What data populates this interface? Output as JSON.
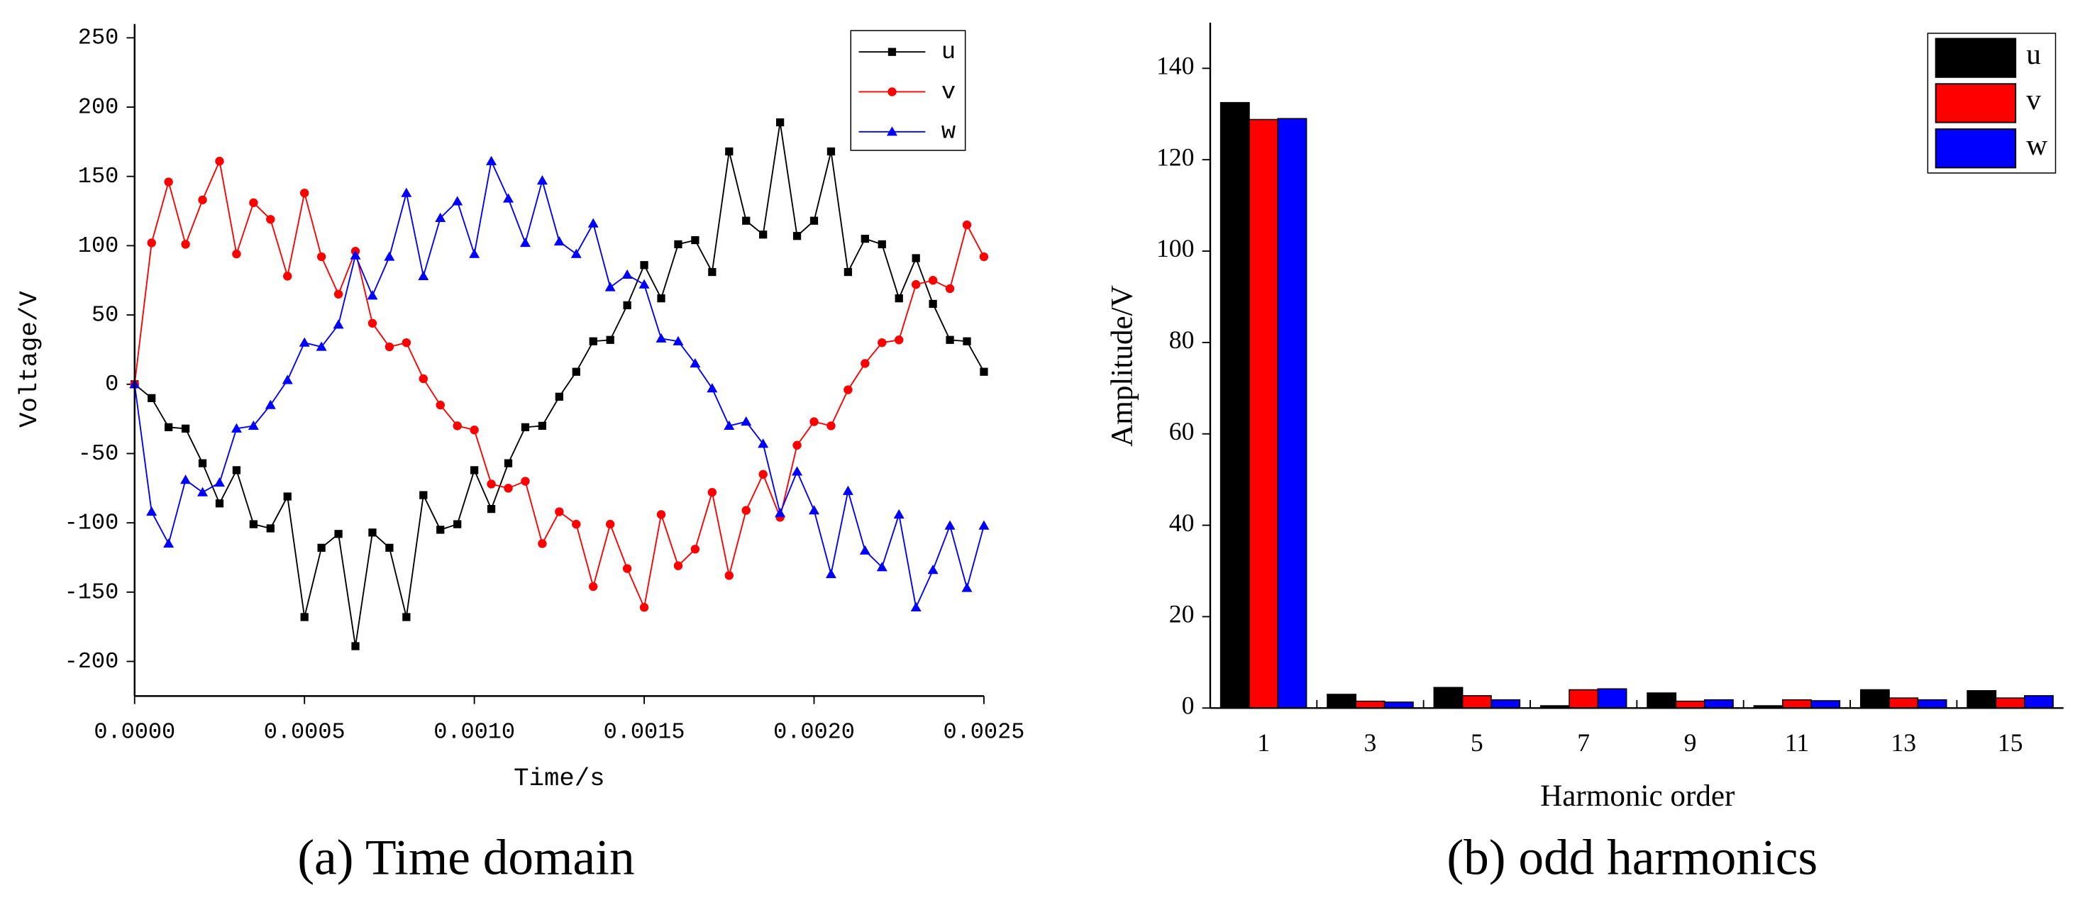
{
  "chart_data": [
    {
      "type": "line",
      "caption": "(a)  Time domain",
      "xlabel": "Time/s",
      "ylabel": "Voltage/V",
      "x": [
        0,
        5e-05,
        0.0001,
        0.00015,
        0.0002,
        0.00025,
        0.0003,
        0.00035,
        0.0004,
        0.00045,
        0.0005,
        0.00055,
        0.0006,
        0.00065,
        0.0007,
        0.00075,
        0.0008,
        0.00085,
        0.0009,
        0.00095,
        0.001,
        0.00105,
        0.0011,
        0.00115,
        0.0012,
        0.00125,
        0.0013,
        0.00135,
        0.0014,
        0.00145,
        0.0015,
        0.00155,
        0.0016,
        0.00165,
        0.0017,
        0.00175,
        0.0018,
        0.00185,
        0.0019,
        0.00195,
        0.002,
        0.00205,
        0.0021,
        0.00215,
        0.0022,
        0.00225,
        0.0023,
        0.00235,
        0.0024,
        0.00245,
        0.0025
      ],
      "series": [
        {
          "name": "u",
          "color": "#000000",
          "marker": "square",
          "values": [
            0,
            -10,
            -31,
            -32,
            -57,
            -86,
            -62,
            -101,
            -104,
            -81,
            -168,
            -118,
            -108,
            -189,
            -107,
            -118,
            -168,
            -80,
            -105,
            -101,
            -62,
            -90,
            -57,
            -31,
            -30,
            -9,
            9,
            31,
            32,
            57,
            86,
            62,
            101,
            104,
            81,
            168,
            118,
            108,
            189,
            107,
            118,
            168,
            81,
            105,
            101,
            62,
            91,
            58,
            32,
            31,
            9
          ]
        },
        {
          "name": "v",
          "color": "#ff0000",
          "marker": "circle",
          "values": [
            0,
            102,
            146,
            101,
            133,
            161,
            94,
            131,
            119,
            78,
            138,
            92,
            65,
            96,
            44,
            27,
            30,
            4,
            -15,
            -30,
            -33,
            -72,
            -75,
            -70,
            -115,
            -92,
            -101,
            -146,
            -101,
            -133,
            -161,
            -94,
            -131,
            -119,
            -78,
            -138,
            -91,
            -65,
            -96,
            -44,
            -27,
            -30,
            -4,
            15,
            30,
            32,
            72,
            75,
            69,
            115,
            92
          ]
        },
        {
          "name": "w",
          "color": "#0000ff",
          "marker": "triangle",
          "values": [
            0,
            -92,
            -115,
            -69,
            -78,
            -71,
            -32,
            -30,
            -15,
            3,
            30,
            27,
            43,
            93,
            64,
            92,
            138,
            78,
            120,
            132,
            94,
            161,
            134,
            102,
            147,
            103,
            94,
            116,
            70,
            79,
            72,
            33,
            31,
            15,
            -3,
            -30,
            -27,
            -43,
            -93,
            -63,
            -91,
            -137,
            -77,
            -120,
            -132,
            -94,
            -161,
            -134,
            -102,
            -147,
            -102
          ]
        }
      ],
      "xlim": [
        0,
        0.0025
      ],
      "xticks": [
        {
          "value": 0,
          "label": "0.0000"
        },
        {
          "value": 0.0005,
          "label": "0.0005"
        },
        {
          "value": 0.001,
          "label": "0.0010"
        },
        {
          "value": 0.0015,
          "label": "0.0015"
        },
        {
          "value": 0.002,
          "label": "0.0020"
        },
        {
          "value": 0.0025,
          "label": "0.0025"
        }
      ],
      "ylim": [
        -225,
        260
      ],
      "yticks": [
        -200,
        -150,
        -100,
        -50,
        0,
        50,
        100,
        150,
        200,
        250
      ],
      "grid": false,
      "legend": "upper right"
    },
    {
      "type": "bar",
      "caption": "(b) odd harmonics",
      "xlabel": "Harmonic order",
      "ylabel": "Amplitude/V",
      "categories": [
        "1",
        "3",
        "5",
        "7",
        "9",
        "11",
        "13",
        "15"
      ],
      "series": [
        {
          "name": "u",
          "color": "#000000",
          "values": [
            132.5,
            3,
            4.5,
            0.5,
            3.3,
            0.5,
            4,
            3.8
          ]
        },
        {
          "name": "v",
          "color": "#ff0000",
          "values": [
            128.8,
            1.5,
            2.7,
            4,
            1.5,
            1.8,
            2.2,
            2.2
          ]
        },
        {
          "name": "w",
          "color": "#0000ff",
          "values": [
            129,
            1.3,
            1.8,
            4.2,
            1.8,
            1.6,
            1.8,
            2.7
          ]
        }
      ],
      "ylim": [
        0,
        150
      ],
      "yticks": [
        0,
        20,
        40,
        60,
        80,
        100,
        120,
        140
      ],
      "grid": false,
      "legend": "upper right"
    }
  ]
}
